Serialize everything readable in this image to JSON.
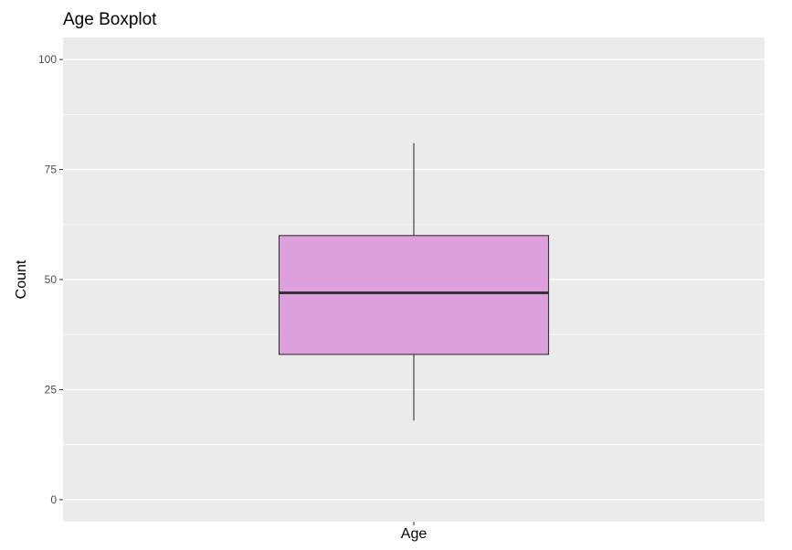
{
  "chart_data": {
    "type": "boxplot",
    "title": "Age Boxplot",
    "xlabel": "",
    "ylabel": "Count",
    "categories": [
      "Age"
    ],
    "ylim": [
      -5,
      105
    ],
    "yticks": [
      0,
      25,
      50,
      75,
      100
    ],
    "grid": true,
    "boxes": [
      {
        "category": "Age",
        "whisker_low": 18,
        "q1": 33,
        "median": 47,
        "q3": 60,
        "whisker_high": 81
      }
    ],
    "colors": {
      "panel_background": "#ebebeb",
      "grid": "#ffffff",
      "box_fill": "#dda0dd",
      "box_stroke": "#333333",
      "whisker": "#333333",
      "median": "#333333",
      "tick_label": "#4d4d4d",
      "text": "#000000"
    }
  }
}
